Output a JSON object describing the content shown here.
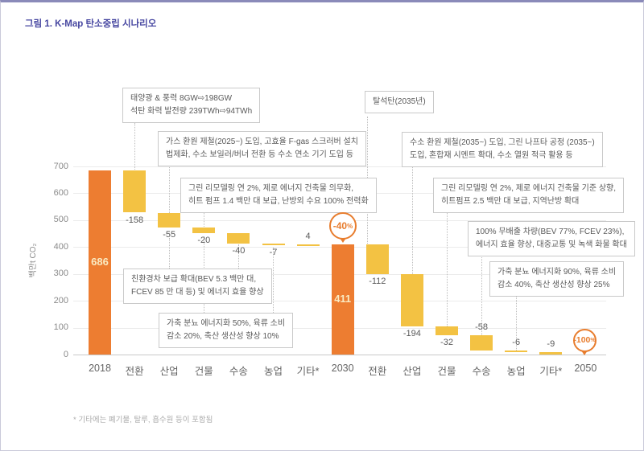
{
  "page": {
    "title": "그림 1. K-Map 탄소중립 시나리오",
    "footnote": "* 기타에는 폐기물, 탈루, 흡수원 등이 포함됨"
  },
  "chart_data": {
    "type": "bar",
    "subtype": "waterfall",
    "title": "K-Map 탄소중립 시나리오",
    "ylabel": "백만t CO₂",
    "xlabel": "",
    "ylim": [
      0,
      700
    ],
    "yticks": [
      0,
      100,
      200,
      300,
      400,
      500,
      600,
      700
    ],
    "grid": "horizontal",
    "categories": [
      "2018",
      "전환",
      "산업",
      "건물",
      "수송",
      "농업",
      "기타*",
      "2030",
      "전환",
      "산업",
      "건물",
      "수송",
      "농업",
      "기타*",
      "2050"
    ],
    "steps": [
      {
        "category": "2018",
        "kind": "total",
        "value": 686,
        "label": "686",
        "label_pos": "inside"
      },
      {
        "category": "전환",
        "kind": "delta",
        "value": -158,
        "label": "-158",
        "label_pos": "below"
      },
      {
        "category": "산업",
        "kind": "delta",
        "value": -55,
        "label": "-55",
        "label_pos": "below"
      },
      {
        "category": "건물",
        "kind": "delta",
        "value": -20,
        "label": "-20",
        "label_pos": "below"
      },
      {
        "category": "수송",
        "kind": "delta",
        "value": -40,
        "label": "-40",
        "label_pos": "below"
      },
      {
        "category": "농업",
        "kind": "delta",
        "value": -7,
        "label": "-7",
        "label_pos": "below"
      },
      {
        "category": "기타*",
        "kind": "delta",
        "value": 4,
        "label": "4",
        "label_pos": "above"
      },
      {
        "category": "2030",
        "kind": "total",
        "value": 411,
        "label": "411",
        "label_pos": "inside"
      },
      {
        "category": "전환",
        "kind": "delta",
        "value": -112,
        "label": "-112",
        "label_pos": "below"
      },
      {
        "category": "산업",
        "kind": "delta",
        "value": -194,
        "label": "-194",
        "label_pos": "below"
      },
      {
        "category": "건물",
        "kind": "delta",
        "value": -32,
        "label": "-32",
        "label_pos": "below"
      },
      {
        "category": "수송",
        "kind": "delta",
        "value": -58,
        "label": "-58",
        "label_pos": "above"
      },
      {
        "category": "농업",
        "kind": "delta",
        "value": -6,
        "label": "-6",
        "label_pos": "above"
      },
      {
        "category": "기타*",
        "kind": "delta",
        "value": -9,
        "label": "-9",
        "label_pos": "above"
      },
      {
        "category": "2050",
        "kind": "total",
        "value": 0,
        "label": "",
        "label_pos": "inside"
      }
    ],
    "badges": [
      {
        "at_category": "2030",
        "number": "-40",
        "suffix": "%"
      },
      {
        "at_category": "2050",
        "number": "-100",
        "suffix": "%"
      }
    ],
    "colors": {
      "total_bar": "#ED7D31",
      "delta_bar": "#F3C243",
      "total_label": "#FAEBC3",
      "badge": "#E87D2E",
      "grid": "#EBEBEB",
      "axis_line": "#C9C9C9"
    }
  },
  "annotations": [
    {
      "id": "power-2030",
      "lines": [
        "태양광 & 풍력 8GW⇨198GW",
        "석탄 화력 발전량 239TWh⇨94TWh"
      ]
    },
    {
      "id": "industry-2030",
      "lines": [
        "가스 환원 제철(2025~) 도입, 고효율 F-gas 스크러버 설치",
        "법제화, 수소 보일러/버너 전환 등 수소 연소 기기 도입 등"
      ]
    },
    {
      "id": "building-2030",
      "lines": [
        "그린 리모델링 연 2%, 제로 에너지 건축물 의무화,",
        "히트 펌프 1.4 백만 대 보급, 난방외 수요 100% 전력화"
      ]
    },
    {
      "id": "transport-2030",
      "lines": [
        "친환경차 보급 확대(BEV 5.3 백만 대,",
        "FCEV 85 만 대 등) 및 에너지 효율 향상"
      ]
    },
    {
      "id": "agriculture-2030",
      "lines": [
        "가축 분뇨 에너지화 50%, 육류 소비",
        "감소 20%, 축산 생산성 향상 10%"
      ]
    },
    {
      "id": "coal-exit",
      "lines": [
        "탈석탄(2035년)"
      ]
    },
    {
      "id": "industry-2050",
      "lines": [
        "수소 환원 제철(2035~) 도입, 그린 나프타 공정 (2035~)",
        "도입, 혼합재 시멘트 확대, 수소 열원 적극 활용 등"
      ]
    },
    {
      "id": "building-2050",
      "lines": [
        "그린 리모델링 연 2%, 제로 에너지 건축물 기준 상향,",
        "히트펌프 2.5 백만 대 보급, 지역난방 확대"
      ]
    },
    {
      "id": "transport-2050",
      "lines": [
        "100% 무배출 차량(BEV 77%, FCEV 23%),",
        "에너지 효율 향상, 대중교통 및 녹색 화물 확대"
      ]
    },
    {
      "id": "agriculture-2050",
      "lines": [
        "가축 분뇨 에너지화 90%, 육류 소비",
        "감소 40%, 축산 생산성 향상 25%"
      ]
    }
  ]
}
